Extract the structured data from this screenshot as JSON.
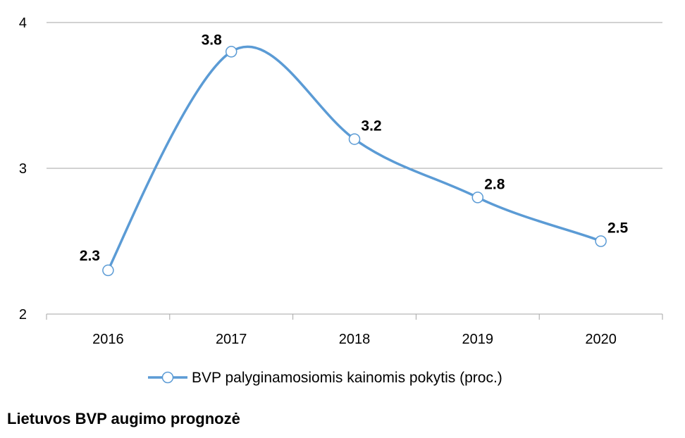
{
  "caption": "Lietuvos BVP augimo prognozė",
  "chart_data": {
    "type": "line",
    "title": "",
    "xlabel": "",
    "ylabel": "",
    "categories": [
      "2016",
      "2017",
      "2018",
      "2019",
      "2020"
    ],
    "ylim": [
      2,
      4
    ],
    "yticks": [
      2,
      3,
      4
    ],
    "grid": true,
    "smooth": true,
    "legend_position": "bottom",
    "series": [
      {
        "name": "BVP palyginamosiomis kainomis pokytis (proc.)",
        "values": [
          2.3,
          3.8,
          3.2,
          2.8,
          2.5
        ],
        "data_labels": [
          "2.3",
          "3.8",
          "3.2",
          "2.8",
          "2.5"
        ],
        "color": "#5b9bd5",
        "marker": "open-circle"
      }
    ]
  },
  "colors": {
    "line": "#5b9bd5",
    "grid": "#a6a6a6",
    "axis": "#a6a6a6"
  }
}
